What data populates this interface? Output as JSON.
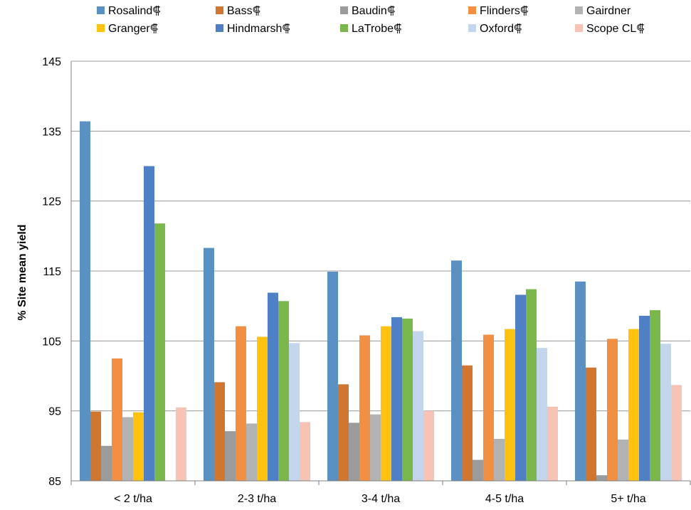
{
  "chart_data": {
    "type": "bar",
    "title": "",
    "xlabel": "",
    "ylabel": "% Site mean yield",
    "ylim": [
      85,
      145
    ],
    "yticks": [
      85,
      95,
      105,
      115,
      125,
      135,
      145
    ],
    "grid": "horizontal",
    "legend_position": "top",
    "categories": [
      "< 2 t/ha",
      "2-3 t/ha",
      "3-4 t/ha",
      "4-5 t/ha",
      "5+ t/ha"
    ],
    "series": [
      {
        "name": "Rosalind⸿",
        "color": "#5a91c2",
        "values": [
          136.4,
          118.3,
          114.9,
          116.5,
          113.5
        ]
      },
      {
        "name": "Bass⸿",
        "color": "#d1762f",
        "values": [
          94.9,
          99.1,
          98.8,
          101.5,
          101.2
        ]
      },
      {
        "name": "Baudin⸿",
        "color": "#9b9b9b",
        "values": [
          90.0,
          92.1,
          93.3,
          88.0,
          85.8
        ]
      },
      {
        "name": "Flinders⸿",
        "color": "#f28f43",
        "values": [
          102.5,
          107.1,
          105.8,
          105.9,
          105.3
        ]
      },
      {
        "name": "Gairdner",
        "color": "#b3b3b3",
        "values": [
          94.1,
          93.2,
          94.5,
          91.0,
          90.9
        ]
      },
      {
        "name": "Granger⸿",
        "color": "#ffc20e",
        "values": [
          94.8,
          105.6,
          107.1,
          106.7,
          106.7
        ]
      },
      {
        "name": "Hindmarsh⸿",
        "color": "#4f80c6",
        "values": [
          130.0,
          111.9,
          108.4,
          111.6,
          108.6
        ]
      },
      {
        "name": "LaTrobe⸿",
        "color": "#7ab84b",
        "values": [
          121.8,
          110.7,
          108.2,
          112.4,
          109.4
        ]
      },
      {
        "name": "Oxford⸿",
        "color": "#c3d6ec",
        "values": [
          null,
          104.7,
          106.4,
          104.0,
          104.6
        ]
      },
      {
        "name": "Scope CL⸿",
        "color": "#f6c3b5",
        "values": [
          95.5,
          93.4,
          95.0,
          95.6,
          98.7
        ]
      }
    ]
  }
}
